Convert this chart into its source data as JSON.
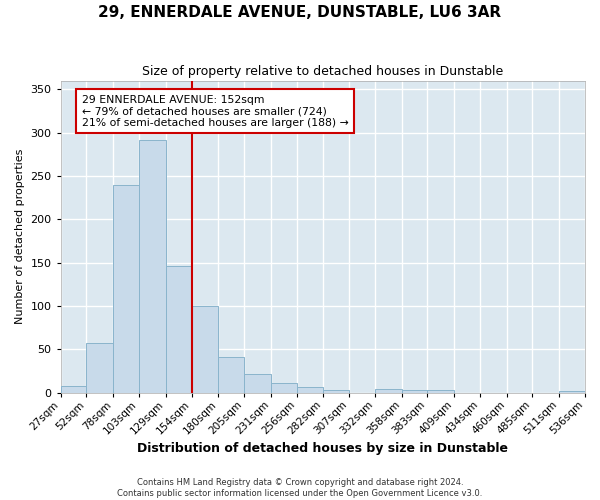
{
  "title": "29, ENNERDALE AVENUE, DUNSTABLE, LU6 3AR",
  "subtitle": "Size of property relative to detached houses in Dunstable",
  "xlabel": "Distribution of detached houses by size in Dunstable",
  "ylabel": "Number of detached properties",
  "footnote1": "Contains HM Land Registry data © Crown copyright and database right 2024.",
  "footnote2": "Contains public sector information licensed under the Open Government Licence v3.0.",
  "annotation_line1": "29 ENNERDALE AVENUE: 152sqm",
  "annotation_line2": "← 79% of detached houses are smaller (724)",
  "annotation_line3": "21% of semi-detached houses are larger (188) →",
  "bin_edges": [
    27,
    52,
    78,
    103,
    129,
    154,
    180,
    205,
    231,
    256,
    282,
    307,
    332,
    358,
    383,
    409,
    434,
    460,
    485,
    511,
    536
  ],
  "bar_heights": [
    8,
    57,
    240,
    291,
    146,
    100,
    41,
    21,
    11,
    6,
    3,
    0,
    4,
    3,
    3,
    0,
    0,
    0,
    0,
    2
  ],
  "bar_color": "#c8daea",
  "bar_edge_color": "#8ab4cc",
  "vline_color": "#cc0000",
  "vline_x": 154,
  "annotation_box_color": "#cc0000",
  "fig_background": "#ffffff",
  "plot_background": "#dce8f0",
  "grid_color": "#ffffff",
  "ylim": [
    0,
    360
  ],
  "yticks": [
    0,
    50,
    100,
    150,
    200,
    250,
    300,
    350
  ],
  "title_fontsize": 11,
  "subtitle_fontsize": 9,
  "ylabel_fontsize": 8,
  "xlabel_fontsize": 9
}
